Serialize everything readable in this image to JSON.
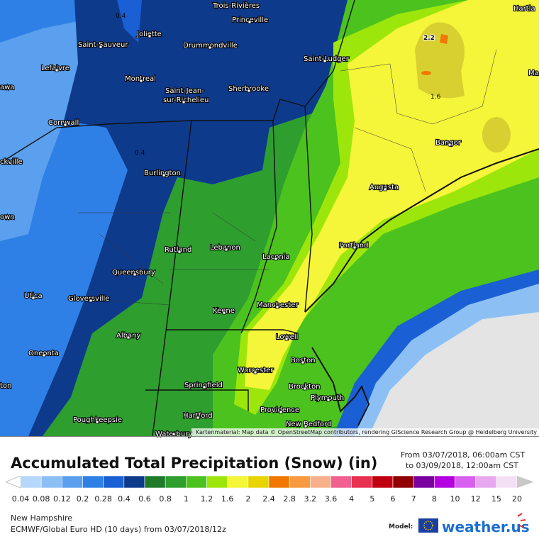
{
  "map": {
    "cities": [
      {
        "name": "Trois-Rivières"
      },
      {
        "name": "Princeville"
      },
      {
        "name": "Joliette"
      },
      {
        "name": "Saint-Sauveur"
      },
      {
        "name": "Drummondville"
      },
      {
        "name": "Saint-Ludger"
      },
      {
        "name": "Lefaivre"
      },
      {
        "name": "Montreal"
      },
      {
        "name": "Saint-Jean-"
      },
      {
        "name": "sur-Richelieu"
      },
      {
        "name": "Sherbrooke"
      },
      {
        "name": "awa"
      },
      {
        "name": "Cornwall"
      },
      {
        "name": "Bangor"
      },
      {
        "name": "ckville"
      },
      {
        "name": "Burlington"
      },
      {
        "name": "Augusta"
      },
      {
        "name": "own"
      },
      {
        "name": "Portland"
      },
      {
        "name": "Rutland"
      },
      {
        "name": "Lebanon"
      },
      {
        "name": "Laconia"
      },
      {
        "name": "Queensbury"
      },
      {
        "name": "Utica"
      },
      {
        "name": "Gloversville"
      },
      {
        "name": "Manchester"
      },
      {
        "name": "Keene"
      },
      {
        "name": "Albany"
      },
      {
        "name": "Lowell"
      },
      {
        "name": "Oneonta"
      },
      {
        "name": "Boston"
      },
      {
        "name": "Worcester"
      },
      {
        "name": "ton"
      },
      {
        "name": "Brockton"
      },
      {
        "name": "Springfield"
      },
      {
        "name": "Plymouth"
      },
      {
        "name": "Providence"
      },
      {
        "name": "Poughkeepsie"
      },
      {
        "name": "Hartford"
      },
      {
        "name": "New Bedford"
      },
      {
        "name": "Waterbury"
      },
      {
        "name": "Hartla"
      },
      {
        "name": "Ma"
      }
    ],
    "contour_labels": [
      "0.4",
      "0.4",
      "2.2",
      "1.6"
    ],
    "attribution": "Kartenmaterial: Map data © OpenStreetMap contributors, rendering GIScience Research Group @ Heidelberg University"
  },
  "legend": {
    "title": "Accumulated Total Precipitation (Snow) (in)",
    "from": "From 03/07/2018, 06:00am CST",
    "to": "to 03/09/2018, 12:00am CST",
    "labels": [
      "0.04",
      "0.08",
      "0.12",
      "0.2",
      "0.28",
      "0.4",
      "0.6",
      "0.8",
      "1",
      "1.2",
      "1.6",
      "2",
      "2.4",
      "2.8",
      "3.2",
      "3.6",
      "4",
      "5",
      "6",
      "7",
      "8",
      "10",
      "12",
      "15",
      "20"
    ],
    "colors": [
      "#b4d7fa",
      "#8cc0f5",
      "#5aa0ee",
      "#2f80e6",
      "#1a5fd4",
      "#0e3a8c",
      "#1f7a2a",
      "#2e9e2e",
      "#4cc21e",
      "#9de60c",
      "#f5f53a",
      "#e8d400",
      "#f07800",
      "#f89a40",
      "#f7b08a",
      "#f06090",
      "#e83050",
      "#c00010",
      "#900000",
      "#7a00a0",
      "#b400e0",
      "#d860f0",
      "#e8a8f0",
      "#f4e0f4"
    ],
    "under_color": "#ffffff",
    "over_color": "#c8c8c8"
  },
  "footer": {
    "region": "New Hampshire",
    "model_run": "ECMWF/Global Euro HD (10 days) from 03/07/2018/12z",
    "model_label": "Model:",
    "brand": "weather.us"
  }
}
